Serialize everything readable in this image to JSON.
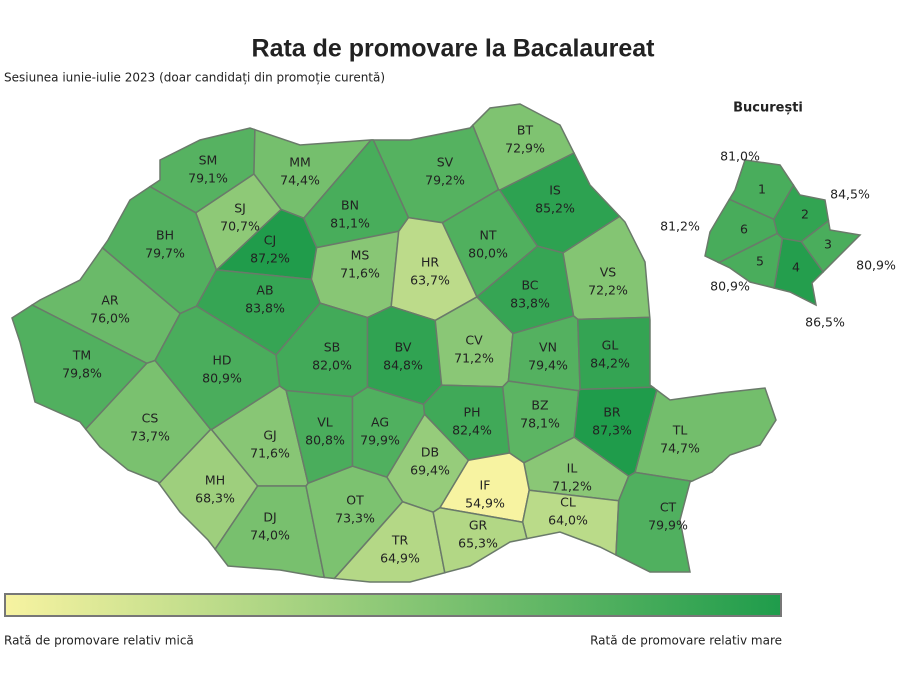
{
  "map": {
    "title": "Rata de promovare la Bacalaureat",
    "subtitle": "Sesiunea iunie-iulie 2023 (doar candidați din promoție curentă)",
    "color_range": [
      "#f7f3a1",
      "#1f9c4b"
    ],
    "regions": [
      {
        "code": "BT",
        "value": 72.9,
        "value_label": "72,9%"
      },
      {
        "code": "SM",
        "value": 79.1,
        "value_label": "79,1%"
      },
      {
        "code": "MM",
        "value": 74.4,
        "value_label": "74,4%"
      },
      {
        "code": "SV",
        "value": 79.2,
        "value_label": "79,2%"
      },
      {
        "code": "SJ",
        "value": 70.7,
        "value_label": "70,7%"
      },
      {
        "code": "BN",
        "value": 81.1,
        "value_label": "81,1%"
      },
      {
        "code": "IS",
        "value": 85.2,
        "value_label": "85,2%"
      },
      {
        "code": "CJ",
        "value": 87.2,
        "value_label": "87,2%"
      },
      {
        "code": "NT",
        "value": 80.0,
        "value_label": "80,0%"
      },
      {
        "code": "MS",
        "value": 71.6,
        "value_label": "71,6%"
      },
      {
        "code": "HR",
        "value": 63.7,
        "value_label": "63,7%"
      },
      {
        "code": "BH",
        "value": 79.7,
        "value_label": "79,7%"
      },
      {
        "code": "BC",
        "value": 83.8,
        "value_label": "83,8%"
      },
      {
        "code": "VS",
        "value": 72.2,
        "value_label": "72,2%"
      },
      {
        "code": "AR",
        "value": 76.0,
        "value_label": "76,0%"
      },
      {
        "code": "AB",
        "value": 83.8,
        "value_label": "83,8%"
      },
      {
        "code": "SB",
        "value": 82.0,
        "value_label": "82,0%"
      },
      {
        "code": "BV",
        "value": 84.8,
        "value_label": "84,8%"
      },
      {
        "code": "CV",
        "value": 71.2,
        "value_label": "71,2%"
      },
      {
        "code": "VN",
        "value": 79.4,
        "value_label": "79,4%"
      },
      {
        "code": "GL",
        "value": 84.2,
        "value_label": "84,2%"
      },
      {
        "code": "TM",
        "value": 79.8,
        "value_label": "79,8%"
      },
      {
        "code": "HD",
        "value": 80.9,
        "value_label": "80,9%"
      },
      {
        "code": "CS",
        "value": 73.7,
        "value_label": "73,7%"
      },
      {
        "code": "GJ",
        "value": 71.6,
        "value_label": "71,6%"
      },
      {
        "code": "VL",
        "value": 80.8,
        "value_label": "80,8%"
      },
      {
        "code": "AG",
        "value": 79.9,
        "value_label": "79,9%"
      },
      {
        "code": "PH",
        "value": 82.4,
        "value_label": "82,4%"
      },
      {
        "code": "BZ",
        "value": 78.1,
        "value_label": "78,1%"
      },
      {
        "code": "BR",
        "value": 87.3,
        "value_label": "87,3%"
      },
      {
        "code": "TL",
        "value": 74.7,
        "value_label": "74,7%"
      },
      {
        "code": "DB",
        "value": 69.4,
        "value_label": "69,4%"
      },
      {
        "code": "MH",
        "value": 68.3,
        "value_label": "68,3%"
      },
      {
        "code": "IL",
        "value": 71.2,
        "value_label": "71,2%"
      },
      {
        "code": "IF",
        "value": 54.9,
        "value_label": "54,9%"
      },
      {
        "code": "DJ",
        "value": 74.0,
        "value_label": "74,0%"
      },
      {
        "code": "OT",
        "value": 73.3,
        "value_label": "73,3%"
      },
      {
        "code": "CL",
        "value": 64.0,
        "value_label": "64,0%"
      },
      {
        "code": "CT",
        "value": 79.9,
        "value_label": "79,9%"
      },
      {
        "code": "TR",
        "value": 64.9,
        "value_label": "64,9%"
      },
      {
        "code": "GR",
        "value": 65.3,
        "value_label": "65,3%"
      }
    ],
    "bucharest": {
      "title": "București",
      "sectors": [
        {
          "code": "1",
          "value": 81.0,
          "value_label": "81,0%"
        },
        {
          "code": "2",
          "value": 84.5,
          "value_label": "84,5%"
        },
        {
          "code": "3",
          "value": 80.9,
          "value_label": "80,9%"
        },
        {
          "code": "4",
          "value": 86.5,
          "value_label": "86,5%"
        },
        {
          "code": "5",
          "value": 80.9,
          "value_label": "80,9%"
        },
        {
          "code": "6",
          "value": 81.2,
          "value_label": "81,2%"
        }
      ]
    },
    "legend": {
      "low": "Rată de promovare relativ mică",
      "high": "Rată de promovare relativ mare"
    }
  }
}
